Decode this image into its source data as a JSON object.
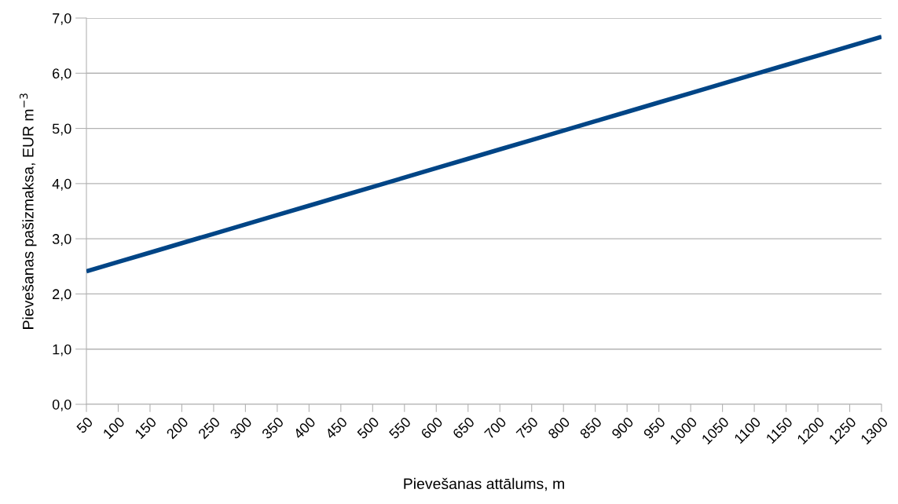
{
  "chart_data": {
    "type": "line",
    "xlabel": "Pievešanas attālums, m",
    "ylabel": "Pievešanas pašizmaksa, EUR m$^{−3}$",
    "categories": [
      "50",
      "100",
      "150",
      "200",
      "250",
      "300",
      "350",
      "400",
      "450",
      "500",
      "550",
      "600",
      "650",
      "700",
      "750",
      "800",
      "850",
      "900",
      "950",
      "1000",
      "1050",
      "1100",
      "1150",
      "1200",
      "1250",
      "1300"
    ],
    "series": [
      {
        "color": "#004586",
        "values": [
          2.41,
          2.58,
          2.75,
          2.92,
          3.09,
          3.26,
          3.43,
          3.6,
          3.77,
          3.94,
          4.11,
          4.28,
          4.45,
          4.62,
          4.79,
          4.96,
          5.13,
          5.3,
          5.47,
          5.64,
          5.81,
          5.98,
          6.15,
          6.32,
          6.49,
          6.66
        ]
      }
    ],
    "ylim": [
      0,
      7
    ],
    "yticks": [
      {
        "value": 0,
        "label": "0,0"
      },
      {
        "value": 1,
        "label": "1,0"
      },
      {
        "value": 2,
        "label": "2,0"
      },
      {
        "value": 3,
        "label": "3,0"
      },
      {
        "value": 4,
        "label": "4,0"
      },
      {
        "value": 5,
        "label": "5,0"
      },
      {
        "value": 6,
        "label": "6,0"
      },
      {
        "value": 7,
        "label": "7,0"
      }
    ],
    "grid": "y",
    "legend": false,
    "marker": "none",
    "line_style": "solid"
  }
}
